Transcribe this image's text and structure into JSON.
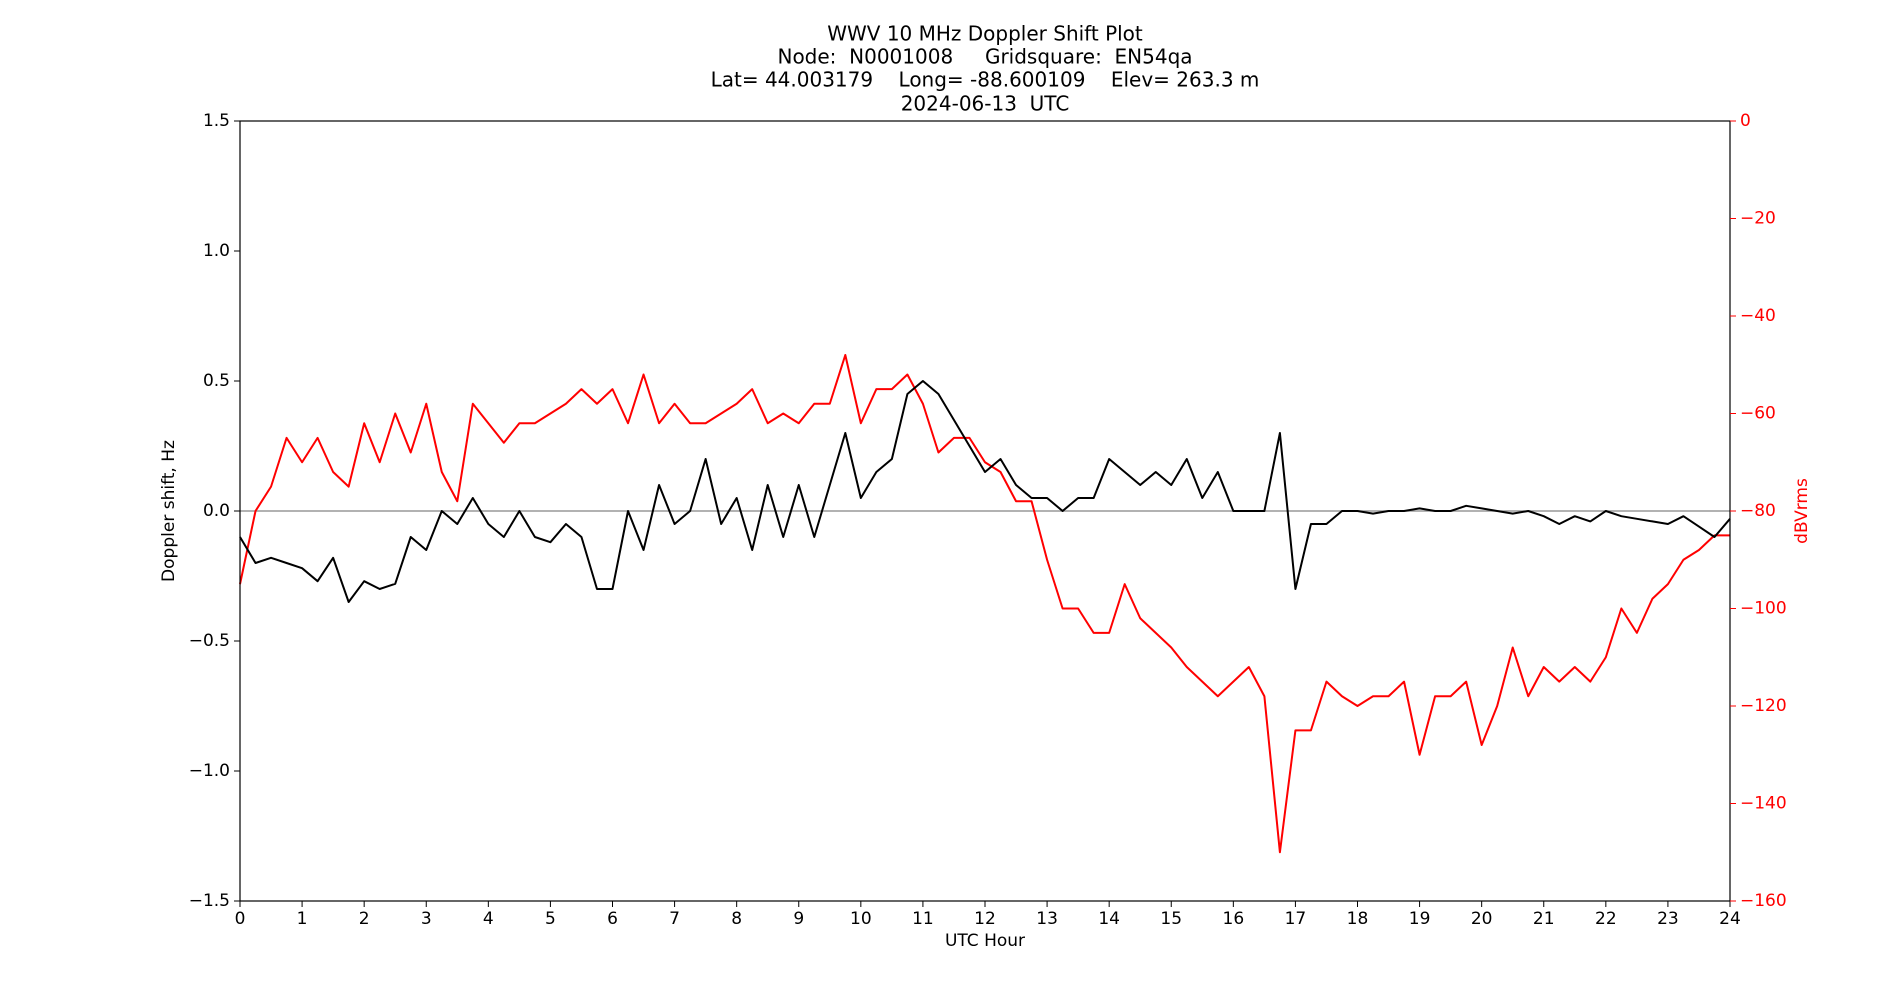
{
  "chart_data": {
    "type": "line",
    "title": [
      "WWV 10 MHz Doppler Shift Plot",
      "Node:  N0001008     Gridsquare:  EN54qa",
      "Lat= 44.003179    Long= -88.600109    Elev= 263.3 m",
      "2024-06-13  UTC"
    ],
    "xlabel": "UTC Hour",
    "ylabel": "Doppler shift, Hz",
    "y2label": "dBVrms",
    "y2color": "#ff0000",
    "hline": 0,
    "hline_color": "#999999",
    "x": [
      0,
      0.25,
      0.5,
      0.75,
      1,
      1.25,
      1.5,
      1.75,
      2,
      2.25,
      2.5,
      2.75,
      3,
      3.25,
      3.5,
      3.75,
      4,
      4.25,
      4.5,
      4.75,
      5,
      5.25,
      5.5,
      5.75,
      6,
      6.25,
      6.5,
      6.75,
      7,
      7.25,
      7.5,
      7.75,
      8,
      8.25,
      8.5,
      8.75,
      9,
      9.25,
      9.5,
      9.75,
      10,
      10.25,
      10.5,
      10.75,
      11,
      11.25,
      11.5,
      11.75,
      12,
      12.25,
      12.5,
      12.75,
      13,
      13.25,
      13.5,
      13.75,
      14,
      14.25,
      14.5,
      14.75,
      15,
      15.25,
      15.5,
      15.75,
      16,
      16.25,
      16.5,
      16.75,
      17,
      17.25,
      17.5,
      17.75,
      18,
      18.25,
      18.5,
      18.75,
      19,
      19.25,
      19.5,
      19.75,
      20,
      20.25,
      20.5,
      20.75,
      21,
      21.25,
      21.5,
      21.75,
      22,
      22.25,
      22.5,
      22.75,
      23,
      23.25,
      23.5,
      23.75,
      24
    ],
    "series": [
      {
        "color": "#ff0000",
        "axis": "y2",
        "values": [
          -95,
          -80,
          -75,
          -65,
          -70,
          -65,
          -72,
          -75,
          -62,
          -70,
          -60,
          -68,
          -58,
          -72,
          -78,
          -58,
          -62,
          -66,
          -62,
          -62,
          -60,
          -58,
          -55,
          -58,
          -55,
          -62,
          -52,
          -62,
          -58,
          -62,
          -62,
          -60,
          -58,
          -55,
          -62,
          -60,
          -62,
          -58,
          -58,
          -48,
          -62,
          -55,
          -55,
          -52,
          -58,
          -68,
          -65,
          -65,
          -70,
          -72,
          -78,
          -78,
          -90,
          -100,
          -100,
          -105,
          -105,
          -95,
          -102,
          -105,
          -108,
          -112,
          -115,
          -118,
          -115,
          -112,
          -118,
          -150,
          -125,
          -125,
          -115,
          -118,
          -120,
          -118,
          -118,
          -115,
          -130,
          -118,
          -118,
          -115,
          -128,
          -120,
          -108,
          -118,
          -112,
          -115,
          -112,
          -115,
          -110,
          -100,
          -105,
          -98,
          -95,
          -90,
          -88,
          -85,
          -85
        ]
      },
      {
        "color": "#000000",
        "axis": "y",
        "values": [
          -0.1,
          -0.2,
          -0.18,
          -0.2,
          -0.22,
          -0.27,
          -0.18,
          -0.35,
          -0.27,
          -0.3,
          -0.28,
          -0.1,
          -0.15,
          0.0,
          -0.05,
          0.05,
          -0.05,
          -0.1,
          0.0,
          -0.1,
          -0.12,
          -0.05,
          -0.1,
          -0.3,
          -0.3,
          0.0,
          -0.15,
          0.1,
          -0.05,
          0.0,
          0.2,
          -0.05,
          0.05,
          -0.15,
          0.1,
          -0.1,
          0.1,
          -0.1,
          0.1,
          0.3,
          0.05,
          0.15,
          0.2,
          0.45,
          0.5,
          0.45,
          0.35,
          0.25,
          0.15,
          0.2,
          0.1,
          0.05,
          0.05,
          0.0,
          0.05,
          0.05,
          0.2,
          0.15,
          0.1,
          0.15,
          0.1,
          0.2,
          0.05,
          0.15,
          0.0,
          0.0,
          0.0,
          0.3,
          -0.3,
          -0.05,
          -0.05,
          0.0,
          0.0,
          -0.01,
          0.0,
          0.0,
          0.01,
          0.0,
          0.0,
          0.02,
          0.01,
          0.0,
          -0.01,
          0.0,
          -0.02,
          -0.05,
          -0.02,
          -0.04,
          0.0,
          -0.02,
          -0.03,
          -0.04,
          -0.05,
          -0.02,
          -0.06,
          -0.1,
          -0.03
        ]
      }
    ],
    "xlim": [
      0,
      24
    ],
    "xticks": [
      0,
      1,
      2,
      3,
      4,
      5,
      6,
      7,
      8,
      9,
      10,
      11,
      12,
      13,
      14,
      15,
      16,
      17,
      18,
      19,
      20,
      21,
      22,
      23,
      24
    ],
    "ylim": [
      -1.5,
      1.5
    ],
    "yticks": [
      {
        "value": -1.5,
        "label": "−1.5"
      },
      {
        "value": -1.0,
        "label": "−1.0"
      },
      {
        "value": -0.5,
        "label": "−0.5"
      },
      {
        "value": 0,
        "label": "0.0"
      },
      {
        "value": 0.5,
        "label": "0.5"
      },
      {
        "value": 1.0,
        "label": "1.0"
      },
      {
        "value": 1.5,
        "label": "1.5"
      }
    ],
    "y2lim": [
      -160,
      0
    ],
    "y2ticks": [
      {
        "value": -160,
        "label": "−160"
      },
      {
        "value": -140,
        "label": "−140"
      },
      {
        "value": -120,
        "label": "−120"
      },
      {
        "value": -100,
        "label": "−100"
      },
      {
        "value": -80,
        "label": "−80"
      },
      {
        "value": -60,
        "label": "−60"
      },
      {
        "value": -40,
        "label": "−40"
      },
      {
        "value": -20,
        "label": "−20"
      },
      0
    ],
    "grid": false
  }
}
